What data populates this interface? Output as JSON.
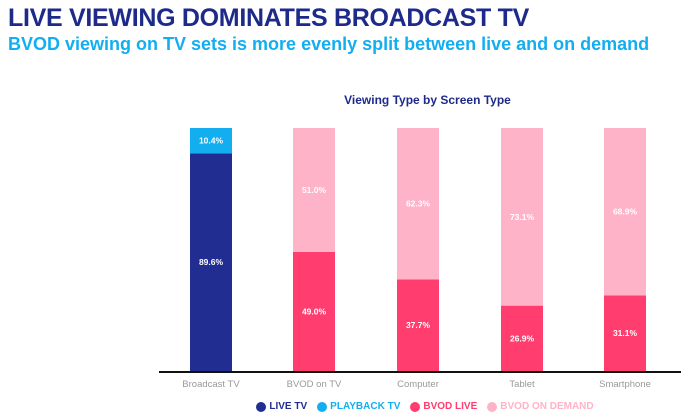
{
  "header": {
    "title": "LIVE VIEWING DOMINATES BROADCAST TV",
    "subtitle": "BVOD viewing on TV sets is more evenly split between live and on demand"
  },
  "chart_data": {
    "type": "bar",
    "stacked": true,
    "title": "Viewing Type by Screen Type",
    "xlabel": "",
    "ylabel": "",
    "ylim": [
      0,
      100
    ],
    "categories": [
      "Broadcast TV",
      "BVOD on TV",
      "Computer",
      "Tablet",
      "Smartphone"
    ],
    "series": [
      {
        "name": "LIVE TV",
        "color": "#212d91",
        "values": [
          89.6,
          null,
          null,
          null,
          null
        ],
        "labels": [
          "89.6%",
          null,
          null,
          null,
          null
        ]
      },
      {
        "name": "PLAYBACK TV",
        "color": "#12aef0",
        "values": [
          10.4,
          null,
          null,
          null,
          null
        ],
        "labels": [
          "10.4%",
          null,
          null,
          null,
          null
        ]
      },
      {
        "name": "BVOD LIVE",
        "color": "#ff3d6e",
        "values": [
          null,
          49.0,
          37.7,
          26.9,
          31.1
        ],
        "labels": [
          null,
          "49.0%",
          "37.7%",
          "26.9%",
          "31.1%"
        ]
      },
      {
        "name": "BVOD ON DEMAND",
        "color": "#ffb3c8",
        "values": [
          null,
          51.0,
          62.3,
          73.1,
          68.9
        ],
        "labels": [
          null,
          "51.0%",
          "62.3%",
          "73.1%",
          "68.9%"
        ]
      }
    ],
    "legend_position": "bottom",
    "grid": false
  }
}
